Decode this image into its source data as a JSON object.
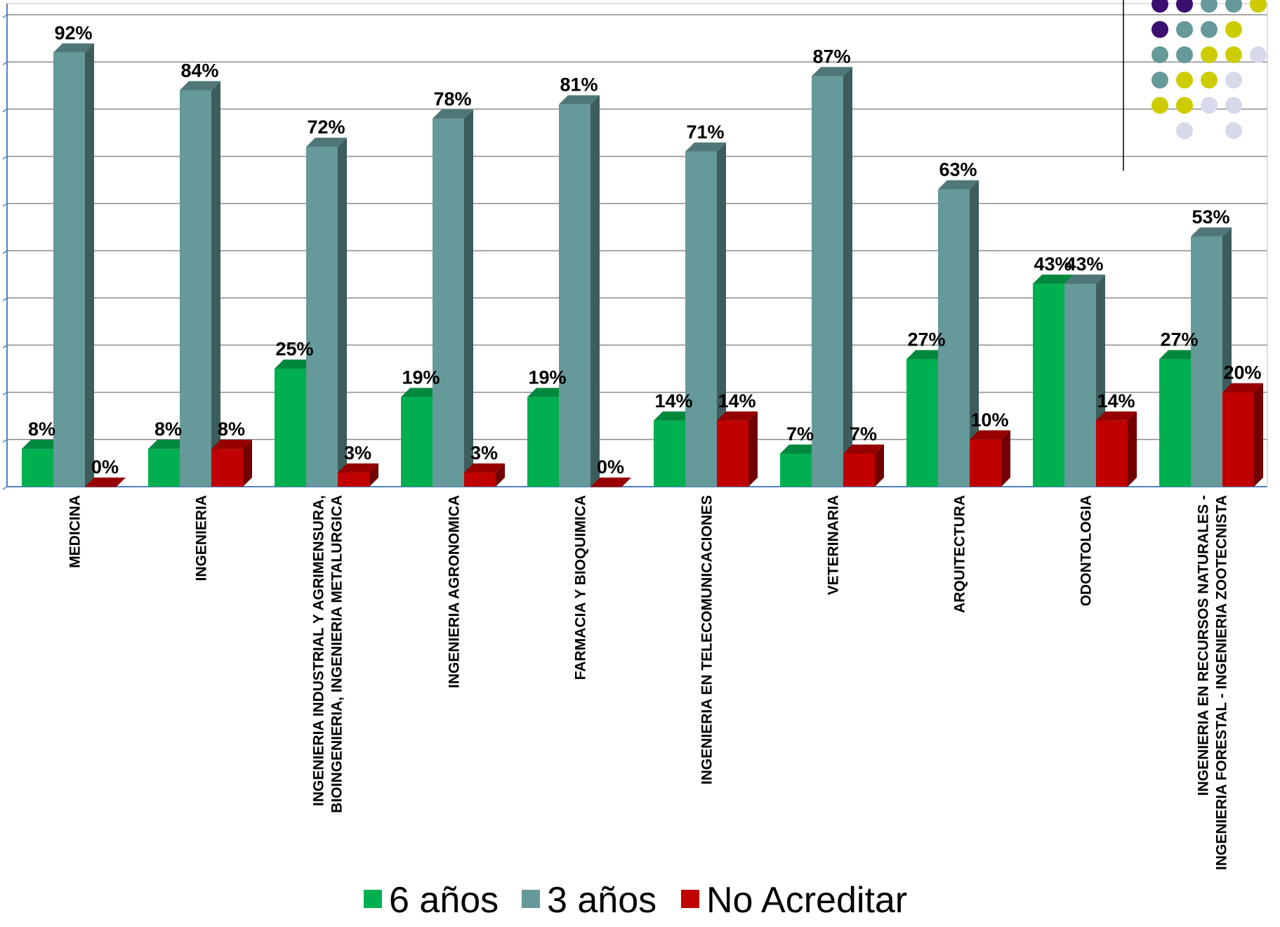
{
  "chart_data": {
    "type": "bar",
    "categories": [
      "MEDICINA",
      "INGENIERIA",
      "INGENIERIA INDUSTRIAL Y AGRIMENSURA, BIOINGENIERIA, INGENIERIA METALURGICA",
      "INGENIERIA AGRONOMICA",
      "FARMACIA Y BIOQUIMICA",
      "INGENIERIA EN TELECOMUNICACIONES",
      "VETERINARIA",
      "ARQUITECTURA",
      "ODONTOLOGIA",
      "INGENIERIA EN RECURSOS NATURALES - INGENIERIA FORESTAL - INGENIERIA ZOOTECNISTA"
    ],
    "category_lines": [
      [
        "MEDICINA"
      ],
      [
        "INGENIERIA"
      ],
      [
        "INGENIERIA INDUSTRIAL Y AGRIMENSURA,",
        "BIOINGENIERIA, INGENIERIA METALURGICA"
      ],
      [
        "INGENIERIA AGRONOMICA"
      ],
      [
        "FARMACIA Y BIOQUIMICA"
      ],
      [
        "INGENIERIA EN TELECOMUNICACIONES"
      ],
      [
        "VETERINARIA"
      ],
      [
        "ARQUITECTURA"
      ],
      [
        "ODONTOLOGIA"
      ],
      [
        "INGENIERIA EN RECURSOS NATURALES -",
        "INGENIERIA FORESTAL - INGENIERIA ZOOTECNISTA"
      ]
    ],
    "series": [
      {
        "name": "6 años",
        "color": "#00b050",
        "values": [
          8,
          8,
          25,
          19,
          19,
          14,
          7,
          27,
          43,
          27
        ]
      },
      {
        "name": "3 años",
        "color": "#669999",
        "values": [
          92,
          84,
          72,
          78,
          81,
          71,
          87,
          63,
          43,
          53
        ]
      },
      {
        "name": "No Acreditar",
        "color": "#c00000",
        "values": [
          0,
          8,
          3,
          3,
          0,
          14,
          7,
          10,
          14,
          20
        ]
      }
    ],
    "value_suffix": "%",
    "ylim": [
      0,
      100
    ],
    "grid": true,
    "legend_position": "bottom",
    "style": "3d-column",
    "decoration_dot_colors": [
      "#3b0f70",
      "#669999",
      "#cccc00",
      "#d9d9ec"
    ]
  }
}
